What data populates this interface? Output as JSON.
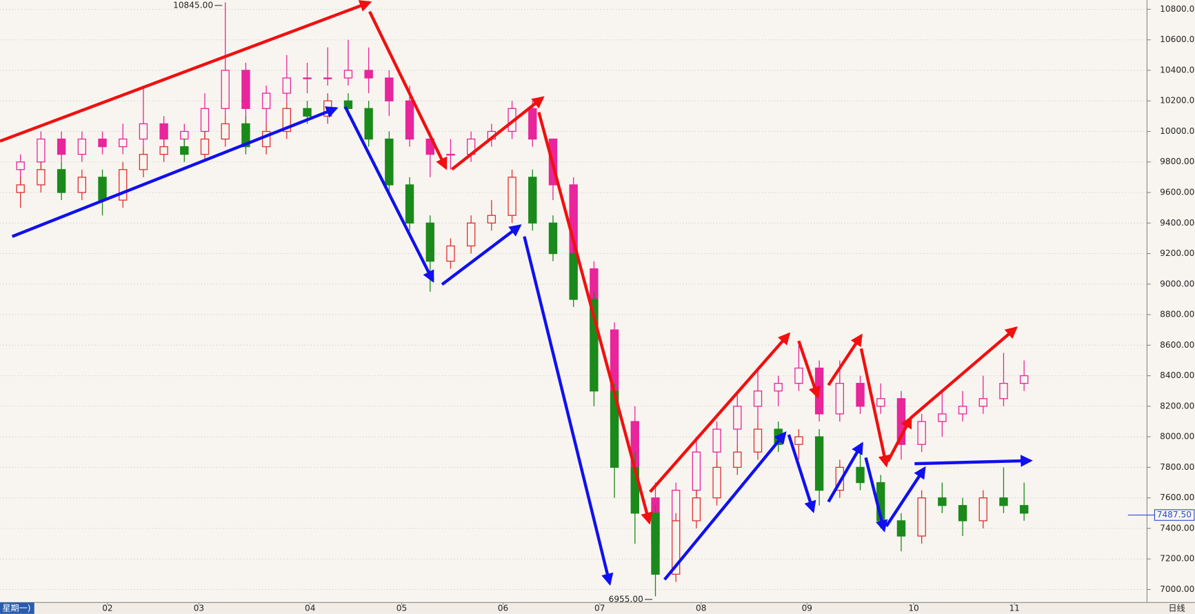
{
  "chart_data": {
    "type": "candlestick",
    "x": [
      1,
      2,
      3,
      4,
      5,
      6,
      7,
      8,
      9,
      10,
      11,
      12,
      13,
      14,
      15,
      16,
      17,
      18,
      19,
      20,
      21,
      22,
      23,
      24,
      25,
      26,
      27,
      28,
      29,
      30,
      31,
      32,
      33,
      34,
      35,
      36,
      37,
      38,
      39,
      40,
      41,
      42,
      43,
      44,
      45,
      46,
      47,
      48,
      49,
      50
    ],
    "xlim": [
      0,
      56
    ],
    "xticks": [
      {
        "value": 5.25,
        "label": "02"
      },
      {
        "value": 9.71,
        "label": "03"
      },
      {
        "value": 15.14,
        "label": "04"
      },
      {
        "value": 19.61,
        "label": "05"
      },
      {
        "value": 24.56,
        "label": "06"
      },
      {
        "value": 29.28,
        "label": "07"
      },
      {
        "value": 34.23,
        "label": "08"
      },
      {
        "value": 39.4,
        "label": "09"
      },
      {
        "value": 44.61,
        "label": "10"
      },
      {
        "value": 49.53,
        "label": "11"
      }
    ],
    "ylim": [
      6915,
      10860
    ],
    "yticks": [
      {
        "value": 7000,
        "label": "7000.00"
      },
      {
        "value": 7200,
        "label": "7200.00"
      },
      {
        "value": 7400,
        "label": "7400.00"
      },
      {
        "value": 7600,
        "label": "7600.00"
      },
      {
        "value": 7800,
        "label": "7800.00"
      },
      {
        "value": 8000,
        "label": "8000.00"
      },
      {
        "value": 8200,
        "label": "8200.00"
      },
      {
        "value": 8400,
        "label": "8400.00"
      },
      {
        "value": 8600,
        "label": "8600.00"
      },
      {
        "value": 8800,
        "label": "8800.00"
      },
      {
        "value": 9000,
        "label": "9000.00"
      },
      {
        "value": 9200,
        "label": "9200.00"
      },
      {
        "value": 9400,
        "label": "9400.00"
      },
      {
        "value": 9600,
        "label": "9600.00"
      },
      {
        "value": 9800,
        "label": "9800.00"
      },
      {
        "value": 10000,
        "label": "10000.00"
      },
      {
        "value": 10200,
        "label": "10200.00"
      },
      {
        "value": 10400,
        "label": "10400.00"
      },
      {
        "value": 10600,
        "label": "10600.00"
      },
      {
        "value": 10800,
        "label": "10800.00"
      }
    ],
    "grid": true,
    "series": [
      {
        "up_color": "#e8259a",
        "down_color": "#e8259a",
        "values": [
          [
            9750,
            9850,
            9650,
            9800
          ],
          [
            9800,
            10000,
            9750,
            9950
          ],
          [
            9950,
            10000,
            9800,
            9850
          ],
          [
            9850,
            10000,
            9800,
            9950
          ],
          [
            9950,
            10000,
            9850,
            9900
          ],
          [
            9900,
            10050,
            9850,
            9950
          ],
          [
            9950,
            10300,
            9900,
            10050
          ],
          [
            10050,
            10100,
            9900,
            9950
          ],
          [
            9950,
            10050,
            9900,
            10000
          ],
          [
            10000,
            10250,
            9950,
            10150
          ],
          [
            10150,
            10845,
            10100,
            10400
          ],
          [
            10400,
            10450,
            9950,
            10150
          ],
          [
            10150,
            10300,
            10050,
            10250
          ],
          [
            10250,
            10500,
            10200,
            10350
          ],
          [
            10350,
            10450,
            10250,
            10350
          ],
          [
            10350,
            10550,
            10300,
            10350
          ],
          [
            10350,
            10600,
            10300,
            10400
          ],
          [
            10400,
            10550,
            10250,
            10350
          ],
          [
            10350,
            10400,
            10100,
            10200
          ],
          [
            10200,
            10300,
            9900,
            9950
          ],
          [
            9950,
            10000,
            9700,
            9850
          ],
          [
            9850,
            9950,
            9750,
            9850
          ],
          [
            9850,
            10000,
            9800,
            9950
          ],
          [
            9950,
            10050,
            9900,
            10000
          ],
          [
            10000,
            10200,
            9950,
            10150
          ],
          [
            10150,
            10200,
            9900,
            9950
          ],
          [
            9950,
            9950,
            9550,
            9650
          ],
          [
            9650,
            9700,
            9000,
            9100
          ],
          [
            9100,
            9150,
            8600,
            8700
          ],
          [
            8700,
            8750,
            7950,
            8100
          ],
          [
            8100,
            8200,
            7500,
            7600
          ],
          [
            7600,
            7700,
            7200,
            7300
          ],
          [
            7300,
            7700,
            7250,
            7650
          ],
          [
            7650,
            8000,
            7600,
            7900
          ],
          [
            7900,
            8100,
            7800,
            8050
          ],
          [
            8050,
            8300,
            7950,
            8200
          ],
          [
            8200,
            8450,
            8100,
            8300
          ],
          [
            8300,
            8400,
            8200,
            8350
          ],
          [
            8350,
            8600,
            8300,
            8450
          ],
          [
            8450,
            8500,
            8100,
            8150
          ],
          [
            8150,
            8500,
            8100,
            8350
          ],
          [
            8350,
            8400,
            8150,
            8200
          ],
          [
            8200,
            8350,
            8150,
            8250
          ],
          [
            8250,
            8300,
            7850,
            7950
          ],
          [
            7950,
            8150,
            7900,
            8100
          ],
          [
            8100,
            8300,
            8000,
            8150
          ],
          [
            8150,
            8300,
            8100,
            8200
          ],
          [
            8200,
            8400,
            8150,
            8250
          ],
          [
            8250,
            8550,
            8200,
            8350
          ],
          [
            8350,
            8500,
            8300,
            8400
          ]
        ]
      },
      {
        "up_color": "#e03030",
        "down_color": "#1a8a1a",
        "values": [
          [
            9600,
            9700,
            9500,
            9650
          ],
          [
            9650,
            9800,
            9600,
            9750
          ],
          [
            9750,
            9800,
            9550,
            9600
          ],
          [
            9600,
            9750,
            9550,
            9700
          ],
          [
            9700,
            9750,
            9450,
            9550
          ],
          [
            9550,
            9800,
            9500,
            9750
          ],
          [
            9750,
            9900,
            9700,
            9850
          ],
          [
            9850,
            9950,
            9800,
            9900
          ],
          [
            9900,
            9950,
            9800,
            9850
          ],
          [
            9850,
            10000,
            9800,
            9950
          ],
          [
            9950,
            10100,
            9900,
            10050
          ],
          [
            10050,
            10100,
            9850,
            9900
          ],
          [
            9900,
            10050,
            9850,
            10000
          ],
          [
            10000,
            10200,
            9950,
            10150
          ],
          [
            10150,
            10200,
            10050,
            10100
          ],
          [
            10100,
            10250,
            10050,
            10200
          ],
          [
            10200,
            10250,
            10100,
            10150
          ],
          [
            10150,
            10200,
            9900,
            9950
          ],
          [
            9950,
            10000,
            9600,
            9650
          ],
          [
            9650,
            9700,
            9350,
            9400
          ],
          [
            9400,
            9450,
            8950,
            9150
          ],
          [
            9150,
            9300,
            9100,
            9250
          ],
          [
            9250,
            9450,
            9200,
            9400
          ],
          [
            9400,
            9550,
            9350,
            9450
          ],
          [
            9450,
            9750,
            9400,
            9700
          ],
          [
            9700,
            9750,
            9350,
            9400
          ],
          [
            9400,
            9450,
            9150,
            9200
          ],
          [
            9200,
            9250,
            8850,
            8900
          ],
          [
            8900,
            8950,
            8200,
            8300
          ],
          [
            8300,
            8350,
            7600,
            7800
          ],
          [
            7800,
            7900,
            7300,
            7500
          ],
          [
            7500,
            7550,
            6955,
            7100
          ],
          [
            7100,
            7500,
            7050,
            7450
          ],
          [
            7450,
            7650,
            7400,
            7600
          ],
          [
            7600,
            7850,
            7550,
            7800
          ],
          [
            7800,
            7950,
            7750,
            7900
          ],
          [
            7900,
            8100,
            7850,
            8050
          ],
          [
            8050,
            8100,
            7900,
            7950
          ],
          [
            7950,
            8050,
            7850,
            8000
          ],
          [
            8000,
            8050,
            7550,
            7650
          ],
          [
            7650,
            7850,
            7600,
            7800
          ],
          [
            7800,
            7950,
            7650,
            7700
          ],
          [
            7700,
            7750,
            7400,
            7450
          ],
          [
            7450,
            7500,
            7250,
            7350
          ],
          [
            7350,
            7650,
            7300,
            7600
          ],
          [
            7600,
            7700,
            7500,
            7550
          ],
          [
            7550,
            7600,
            7350,
            7450
          ],
          [
            7450,
            7650,
            7400,
            7600
          ],
          [
            7600,
            7800,
            7500,
            7550
          ],
          [
            7550,
            7700,
            7450,
            7500
          ]
        ]
      }
    ],
    "annotations": [
      {
        "label": "10845.00",
        "value": 10845,
        "x": 11
      },
      {
        "label": "6955.00",
        "value": 6955,
        "x": 32
      }
    ],
    "last_price": {
      "value": 7487.5,
      "label": "7487.50"
    },
    "period_label": "日线",
    "weekday_label": "星期一)"
  }
}
